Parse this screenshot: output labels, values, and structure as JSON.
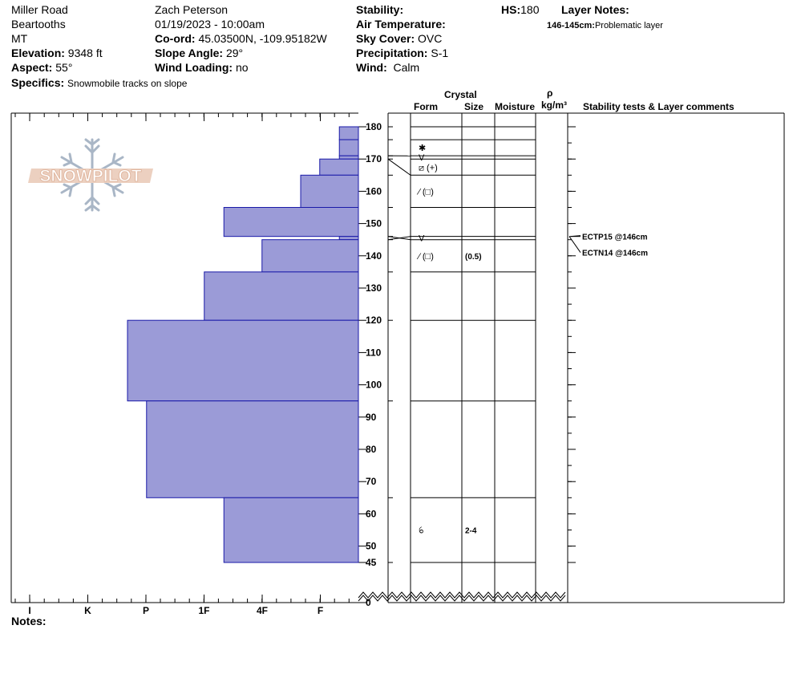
{
  "header": {
    "location": "Miller Road",
    "range": "Beartooths",
    "state": "MT",
    "elevation_label": "Elevation:",
    "elevation_value": "9348 ft",
    "aspect_label": "Aspect:",
    "aspect_value": "55°",
    "observer": "Zach Peterson",
    "datetime": "01/19/2023 - 10:00am",
    "coord_label": "Co-ord:",
    "coord_value": "45.03500N, -109.95182W",
    "slope_label": "Slope Angle:",
    "slope_value": "29°",
    "wind_loading_label": "Wind Loading:",
    "wind_loading_value": "no",
    "specifics_label": "Specifics:",
    "specifics_value": "Snowmobile tracks on slope",
    "stability_label": "Stability:",
    "air_temp_label": "Air Temperature:",
    "sky_label": "Sky Cover:",
    "sky_value": "OVC",
    "precip_label": "Precipitation:",
    "precip_value": "S-1",
    "wind_label": "Wind:",
    "wind_value": "Calm",
    "hs_label": "HS:",
    "hs_value": "180",
    "layer_notes_label": "Layer Notes:",
    "layer_note_range": "146-145cm:",
    "layer_note_text": "Problematic layer"
  },
  "logo_text": "SNOWPILOT",
  "notes_label": "Notes:",
  "columns": {
    "crystal": "Crystal",
    "form": "Form",
    "size": "Size",
    "moisture": "Moisture",
    "rho": "ρ",
    "density_unit": "kg/m³",
    "stability": "Stability tests & Layer comments"
  },
  "colors": {
    "hardness_fill": "#9b9bd7",
    "hardness_stroke": "#1a1aa8"
  },
  "chart_data": {
    "type": "bar",
    "orientation": "horizontal",
    "y_unit": "cm",
    "y_ticks": [
      180,
      170,
      160,
      150,
      140,
      130,
      120,
      110,
      100,
      90,
      80,
      70,
      60,
      50,
      45,
      0
    ],
    "x_categories": [
      "I",
      "K",
      "P",
      "1F",
      "4F",
      "F"
    ],
    "layers": [
      {
        "top": 180,
        "bottom": 176,
        "hardness": 0.33
      },
      {
        "top": 176,
        "bottom": 171,
        "hardness": 0.33
      },
      {
        "top": 171,
        "bottom": 170,
        "hardness": 0.33
      },
      {
        "top": 170,
        "bottom": 165,
        "hardness": 0.67
      },
      {
        "top": 165,
        "bottom": 155,
        "hardness": 1.0
      },
      {
        "top": 155,
        "bottom": 146,
        "hardness": 2.33
      },
      {
        "top": 146,
        "bottom": 145,
        "hardness": 0.33
      },
      {
        "top": 145,
        "bottom": 135,
        "hardness": 1.67
      },
      {
        "top": 135,
        "bottom": 120,
        "hardness": 2.67
      },
      {
        "top": 120,
        "bottom": 95,
        "hardness": 4.0
      },
      {
        "top": 95,
        "bottom": 65,
        "hardness": 3.67
      },
      {
        "top": 65,
        "bottom": 45,
        "hardness": 2.33
      }
    ],
    "crystal_layers": [
      {
        "top": 176,
        "bottom": 171,
        "form": "✱",
        "size": ""
      },
      {
        "top": 171,
        "bottom": 170,
        "form": "V",
        "size": ""
      },
      {
        "top": 170,
        "bottom": 165,
        "form": "⧄ (+)",
        "size": ""
      },
      {
        "top": 165,
        "bottom": 155,
        "form": "⁄ (□)",
        "size": ""
      },
      {
        "top": 146,
        "bottom": 145,
        "form": "V",
        "size": ""
      },
      {
        "top": 145,
        "bottom": 135,
        "form": "⁄ (□)",
        "size": "(0.5)"
      },
      {
        "top": 65,
        "bottom": 45,
        "form": "ꕃ",
        "size": "2-4"
      }
    ],
    "tests": [
      {
        "label": "ECTP15 @146cm",
        "depth": 146
      },
      {
        "label": "ECTN14 @146cm",
        "depth": 146
      }
    ]
  }
}
